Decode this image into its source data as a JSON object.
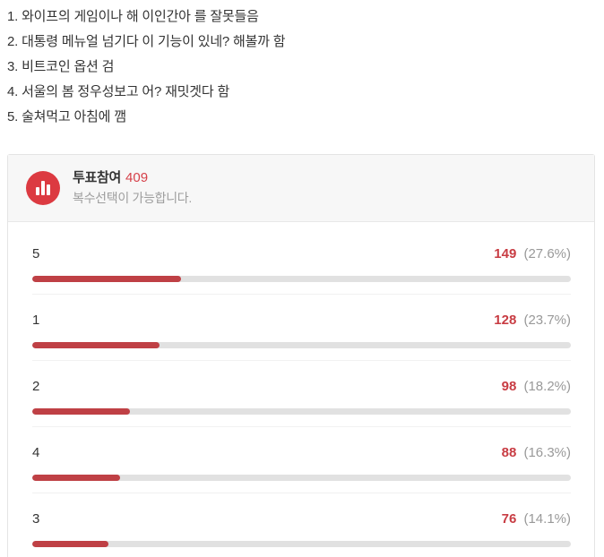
{
  "list": {
    "items": [
      "1. 와이프의 게임이나 해 이인간아 를 잘못들음",
      "2. 대통령 메뉴얼 넘기다 이 기능이 있네? 해볼까 함",
      "3. 비트코인 옵션 검",
      "4. 서울의 봄 정우성보고 어? 재밋겟다 함",
      "5. 술쳐먹고 아침에 깸"
    ]
  },
  "poll": {
    "title": "투표참여",
    "participants": "409",
    "subtitle": "복수선택이 가능합니다.",
    "icon": "bar-chart-icon",
    "colors": {
      "icon_red": "#dc3a41",
      "bar_red": "#bf4045",
      "value_red": "#c83c43",
      "track_gray": "#e1e1e1",
      "header_bg": "#f7f7f7",
      "border": "#e4e4e4",
      "text_dark": "#333333",
      "text_gray": "#9e9e9e"
    },
    "rows": [
      {
        "label": "5",
        "votes": "149",
        "percent": "(27.6%)",
        "pct": 27.6
      },
      {
        "label": "1",
        "votes": "128",
        "percent": "(23.7%)",
        "pct": 23.7
      },
      {
        "label": "2",
        "votes": "98",
        "percent": "(18.2%)",
        "pct": 18.2
      },
      {
        "label": "4",
        "votes": "88",
        "percent": "(16.3%)",
        "pct": 16.3
      },
      {
        "label": "3",
        "votes": "76",
        "percent": "(14.1%)",
        "pct": 14.1
      }
    ]
  },
  "chart_data": {
    "type": "bar",
    "title": "투표참여 409",
    "subtitle": "복수선택이 가능합니다.",
    "categories": [
      "5",
      "1",
      "2",
      "4",
      "3"
    ],
    "values": [
      149,
      128,
      98,
      88,
      76
    ],
    "percentages": [
      27.6,
      23.7,
      18.2,
      16.3,
      14.1
    ],
    "total_votes": 409,
    "orientation": "horizontal",
    "xlim": [
      0,
      100
    ],
    "grid": false,
    "legend": false
  }
}
